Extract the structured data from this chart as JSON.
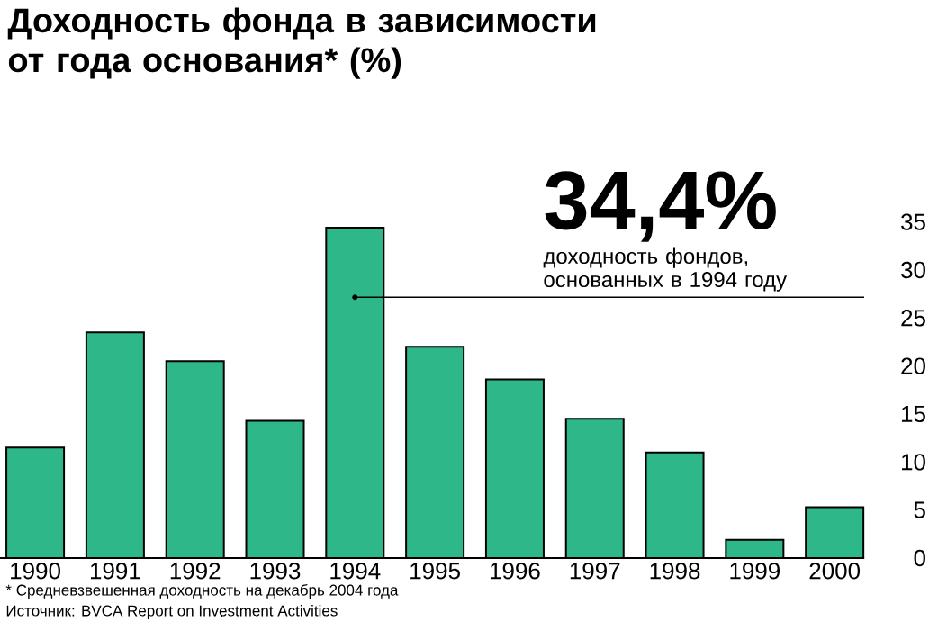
{
  "chart_data": {
    "type": "bar",
    "title": "Доходность фонда в зависимости от года основания* (%)",
    "categories": [
      "1990",
      "1991",
      "1992",
      "1993",
      "1994",
      "1995",
      "1996",
      "1997",
      "1998",
      "1999",
      "2000"
    ],
    "values": [
      11.5,
      23.5,
      20.5,
      14.3,
      34.4,
      22.0,
      18.6,
      14.5,
      11.0,
      1.9,
      5.3
    ],
    "color": "#2eb88a",
    "ylim": [
      0,
      35
    ],
    "yticks": [
      0,
      5,
      10,
      15,
      20,
      25,
      30,
      35
    ],
    "annotations": [
      {
        "text": "34,4%",
        "x": "1994",
        "y": 34.4
      },
      "доходность фондов, основанных в 1994 году",
      "* Средневзвешенная доходность на декабрь 2004 года",
      "Источник: BVCA Report on Investment Activities"
    ]
  }
}
